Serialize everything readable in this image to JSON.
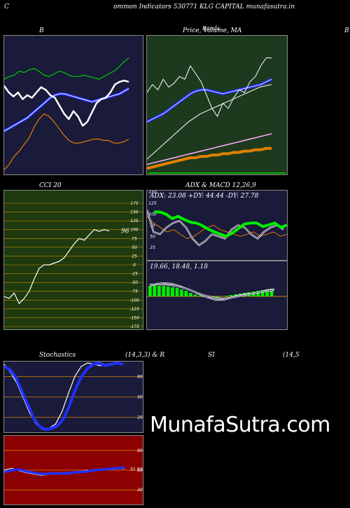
{
  "header": {
    "left": "C",
    "title": "ommon  Indicators 530771 KLG CAPITAL  munafasutra.in"
  },
  "labels": {
    "bb": "B",
    "price": "Price,  Volume,  MA",
    "price_overlap": "Bands",
    "edge": "B",
    "cci": "CCI 20",
    "adx_macd": "ADX  & MACD 12,26,9",
    "stoch_left": "Stochastics",
    "stoch_mid": "(14,3,3) & R",
    "stoch_si": "SI",
    "stoch_right": "(14,5"
  },
  "watermark": "MunafaSutra.com",
  "colors": {
    "bb_bg": "#1a1a3a",
    "price_bg": "#1e3a1e",
    "cci_bg": "#1e3a0e",
    "adx_bg": "#1a1a3a",
    "stoch_bg": "#1a1a3a",
    "rsi_bg": "#8b0000",
    "grid_orange": "#cc8400",
    "blue": "#2030ff",
    "green": "#00cc00",
    "orange": "#e08000"
  },
  "chart_data": [
    {
      "type": "line",
      "id": "bollinger",
      "ylim": [
        0,
        100
      ],
      "series": [
        {
          "values": [
            70,
            72,
            73,
            76,
            75,
            77,
            78,
            76,
            73,
            72,
            74,
            76,
            75,
            73,
            72,
            72,
            73,
            72,
            71,
            70,
            72,
            74,
            76,
            79,
            83,
            86
          ]
        },
        {
          "values": [
            65,
            60,
            57,
            60,
            55,
            58,
            56,
            60,
            64,
            62,
            58,
            56,
            50,
            44,
            40,
            46,
            42,
            35,
            38,
            45,
            52,
            55,
            56,
            60,
            66,
            68,
            69,
            68
          ]
        },
        {
          "values": [
            31,
            33,
            35,
            37,
            39,
            41,
            44,
            47,
            50,
            53,
            56,
            58,
            59,
            59,
            58,
            57,
            56,
            55,
            54,
            53,
            54,
            55,
            56,
            57,
            58,
            59,
            61,
            63
          ]
        },
        {
          "values": [
            2,
            6,
            12,
            16,
            21,
            26,
            34,
            40,
            44,
            42,
            38,
            33,
            28,
            24,
            22,
            22,
            23,
            24,
            25,
            25,
            24,
            24,
            22,
            22,
            23,
            25
          ]
        }
      ]
    },
    {
      "type": "line",
      "id": "price",
      "ylim": [
        0,
        100
      ],
      "series": [
        {
          "values": [
            60,
            66,
            62,
            70,
            64,
            67,
            72,
            70,
            80,
            74,
            68,
            58,
            48,
            42,
            52,
            48,
            56,
            62,
            60,
            68,
            72,
            80,
            86,
            86
          ]
        },
        {
          "values": [
            38,
            40,
            42,
            44,
            47,
            50,
            53,
            56,
            59,
            61,
            62,
            62,
            61,
            60,
            59,
            60,
            61,
            62,
            63,
            64,
            65,
            66,
            68,
            70
          ]
        },
        {
          "values": [
            10,
            14,
            18,
            22,
            26,
            30,
            34,
            38,
            41,
            44,
            46,
            48,
            50,
            52,
            54,
            56,
            58,
            60,
            62,
            64,
            65,
            66
          ]
        },
        {
          "values": [
            6,
            7,
            8,
            9,
            10,
            11,
            12,
            13,
            14,
            15,
            16,
            17,
            18,
            19,
            20,
            21,
            22,
            23,
            24,
            25,
            26,
            27,
            28,
            29
          ]
        },
        {
          "values": [
            3,
            4,
            5,
            6,
            7,
            8,
            9,
            10,
            11,
            11,
            12,
            12,
            13,
            13,
            14,
            14,
            15,
            15,
            16,
            16,
            17,
            17,
            18,
            18
          ]
        }
      ]
    },
    {
      "type": "line",
      "id": "cci",
      "ylim": [
        -175,
        175
      ],
      "yticks": [
        175,
        150,
        125,
        100,
        75,
        50,
        25,
        0,
        -25,
        -50,
        -75,
        -100,
        -125,
        -150,
        -175
      ],
      "last_value_label": "96",
      "series": [
        {
          "values": [
            -90,
            -95,
            -80,
            -110,
            -95,
            -75,
            -40,
            -10,
            0,
            0,
            5,
            10,
            20,
            40,
            60,
            75,
            70,
            85,
            100,
            95,
            100,
            96
          ]
        }
      ]
    },
    {
      "type": "line",
      "id": "adx",
      "ylim": [
        0,
        150
      ],
      "yticks": [
        150,
        125,
        100,
        75,
        50,
        25
      ],
      "readout": "ADX: 23.08  +DY: 44.44  -DY: 27.78",
      "series": [
        {
          "values": [
            105,
            105,
            100,
            90,
            95,
            88,
            82,
            80,
            74,
            66,
            60,
            55,
            50,
            58,
            68,
            78,
            80,
            80,
            72,
            76,
            80,
            70,
            76
          ]
        },
        {
          "values": [
            110,
            60,
            55,
            70,
            80,
            85,
            70,
            45,
            30,
            40,
            55,
            50,
            45,
            65,
            75,
            70,
            55,
            45,
            60,
            70,
            75,
            65
          ]
        },
        {
          "values": [
            95,
            80,
            70,
            60,
            65,
            55,
            45,
            50,
            60,
            70,
            75,
            65,
            60,
            55,
            50,
            55,
            60,
            50,
            55,
            60,
            50,
            55
          ]
        }
      ]
    },
    {
      "type": "bar",
      "id": "macd",
      "readout": "19.66,  18.48,  1.18",
      "values": [
        30,
        32,
        30,
        30,
        28,
        26,
        24,
        20,
        16,
        10,
        5,
        2,
        -2,
        -4,
        -3,
        -2,
        0,
        2,
        4,
        6,
        8,
        10,
        12,
        14,
        16,
        18,
        20,
        20
      ],
      "series": [
        {
          "values": [
            30,
            36,
            38,
            36,
            30,
            22,
            14,
            4,
            -4,
            -10,
            -10,
            -4,
            2,
            6,
            8,
            12,
            18,
            20
          ]
        },
        {
          "values": [
            34,
            34,
            34,
            32,
            28,
            22,
            14,
            6,
            0,
            -4,
            -6,
            -4,
            0,
            4,
            8,
            12,
            16,
            18
          ]
        }
      ]
    },
    {
      "type": "line",
      "id": "stochastics",
      "ylim": [
        0,
        100
      ],
      "yticks": [
        80,
        50,
        20
      ],
      "series": [
        {
          "values": [
            95,
            90,
            78,
            58,
            38,
            18,
            6,
            2,
            4,
            8,
            18,
            38,
            62,
            80,
            92,
            98,
            100,
            96,
            98,
            100,
            98
          ]
        },
        {
          "values": [
            98,
            86,
            70,
            48,
            26,
            10,
            2,
            4,
            10,
            28,
            55,
            80,
            95,
            100,
            98,
            96,
            98,
            100,
            99
          ]
        }
      ]
    },
    {
      "type": "line",
      "id": "rsi",
      "ylim": [
        0,
        100
      ],
      "yticks": [
        80,
        50,
        20
      ],
      "last_value_label": "51.53",
      "series": [
        {
          "values": [
            47,
            50,
            51,
            48,
            46,
            44,
            45,
            45,
            45,
            46,
            47,
            48,
            50,
            51,
            52,
            53,
            54
          ]
        },
        {
          "values": [
            50,
            53,
            49,
            46,
            44,
            42,
            44,
            45,
            46,
            47,
            48,
            50,
            49,
            52,
            51,
            53,
            52
          ]
        }
      ]
    }
  ]
}
